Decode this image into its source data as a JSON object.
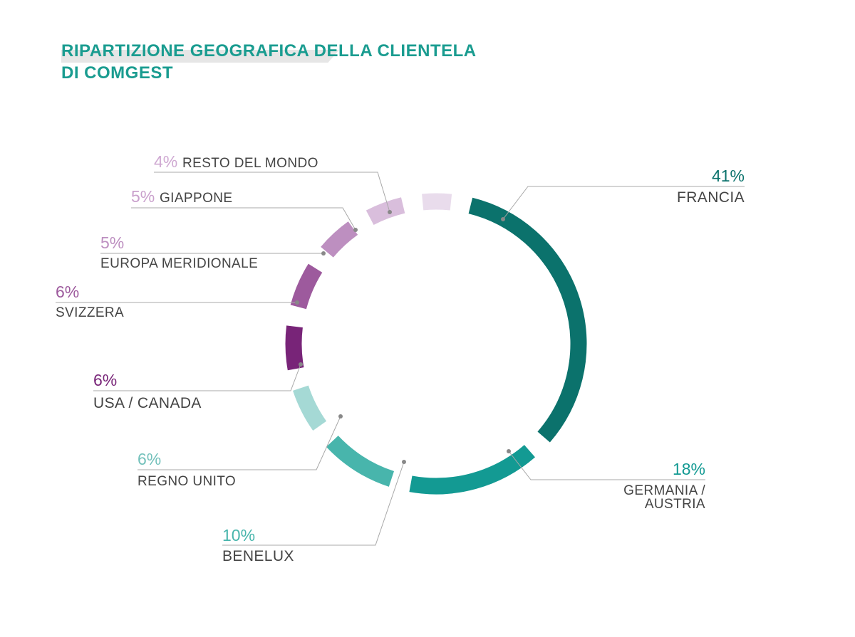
{
  "title": {
    "line1": "RIPARTIZIONE GEOGRAFICA DELLA CLIENTELA",
    "line2": "DI COMGEST"
  },
  "chart_data": {
    "type": "pie",
    "style": "segmented-ring",
    "unit": "%",
    "slices": [
      {
        "label": [
          "FRANCIA"
        ],
        "value": 41,
        "value_label": "41%",
        "color": "#0b726c"
      },
      {
        "label": [
          "GERMANIA /",
          "AUSTRIA"
        ],
        "value": 18,
        "value_label": "18%",
        "color": "#139a93"
      },
      {
        "label": [
          "BENELUX"
        ],
        "value": 10,
        "value_label": "10%",
        "color": "#48b5ac"
      },
      {
        "label": [
          "REGNO UNITO"
        ],
        "value": 6,
        "value_label": "6%",
        "color": "#a5d9d5"
      },
      {
        "label": [
          "USA / CANADA"
        ],
        "value": 6,
        "value_label": "6%",
        "color": "#782478"
      },
      {
        "label": [
          "SVIZZERA"
        ],
        "value": 6,
        "value_label": "6%",
        "color": "#9d5a9d"
      },
      {
        "label": [
          "EUROPA MERIDIONALE"
        ],
        "value": 5,
        "value_label": "5%",
        "color": "#bd8fc0"
      },
      {
        "label": [
          "GIAPPONE"
        ],
        "value": 5,
        "value_label": "5%",
        "color": "#d9bedc"
      },
      {
        "label": [
          "RESTO DEL MONDO"
        ],
        "value": 4,
        "value_label": "4%",
        "color": "#e9dcec"
      }
    ]
  }
}
